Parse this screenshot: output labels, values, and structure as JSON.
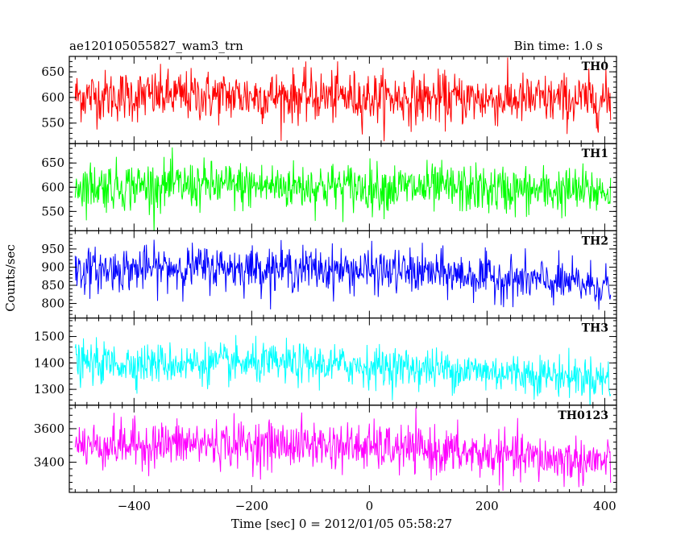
{
  "header": {
    "left": "ae120105055827_wam3_trn",
    "right": "Bin time: 1.0 s"
  },
  "chart_data": {
    "type": "line",
    "xlabel": "Time [sec] 0 = 2012/01/05 05:58:27",
    "ylabel": "Counts/sec",
    "xlim": [
      -510,
      420
    ],
    "xticks": [
      -400,
      -200,
      0,
      200,
      400
    ],
    "bin_time_s": 1.0,
    "series": [
      {
        "name": "TH0",
        "color": "#ff0000",
        "ylim": [
          510,
          680
        ],
        "yticks": [
          550,
          600,
          650
        ],
        "level": [
          [
            -500,
            603
          ],
          [
            -300,
            603
          ],
          [
            -100,
            602
          ],
          [
            100,
            598
          ],
          [
            300,
            595
          ],
          [
            410,
            595
          ]
        ],
        "noise_sd": 25
      },
      {
        "name": "TH1",
        "color": "#00ff00",
        "ylim": [
          510,
          690
        ],
        "yticks": [
          550,
          600,
          650
        ],
        "level": [
          [
            -500,
            603
          ],
          [
            -300,
            603
          ],
          [
            -100,
            602
          ],
          [
            100,
            598
          ],
          [
            300,
            592
          ],
          [
            410,
            592
          ]
        ],
        "noise_sd": 25
      },
      {
        "name": "TH2",
        "color": "#0000ff",
        "ylim": [
          760,
          1000
        ],
        "yticks": [
          800,
          850,
          900,
          950
        ],
        "level": [
          [
            -500,
            890
          ],
          [
            -300,
            900
          ],
          [
            -100,
            895
          ],
          [
            100,
            885
          ],
          [
            300,
            860
          ],
          [
            410,
            848
          ]
        ],
        "noise_sd": 30
      },
      {
        "name": "TH3",
        "color": "#00ffff",
        "ylim": [
          1240,
          1570
        ],
        "yticks": [
          1300,
          1400,
          1500
        ],
        "level": [
          [
            -500,
            1398
          ],
          [
            -300,
            1398
          ],
          [
            -100,
            1395
          ],
          [
            100,
            1380
          ],
          [
            300,
            1355
          ],
          [
            410,
            1340
          ]
        ],
        "noise_sd": 38
      },
      {
        "name": "TH0123",
        "color": "#ff00ff",
        "ylim": [
          3220,
          3740
        ],
        "yticks": [
          3400,
          3600
        ],
        "level": [
          [
            -500,
            3500
          ],
          [
            -300,
            3510
          ],
          [
            -100,
            3505
          ],
          [
            100,
            3470
          ],
          [
            300,
            3420
          ],
          [
            410,
            3400
          ]
        ],
        "noise_sd": 70
      }
    ]
  }
}
